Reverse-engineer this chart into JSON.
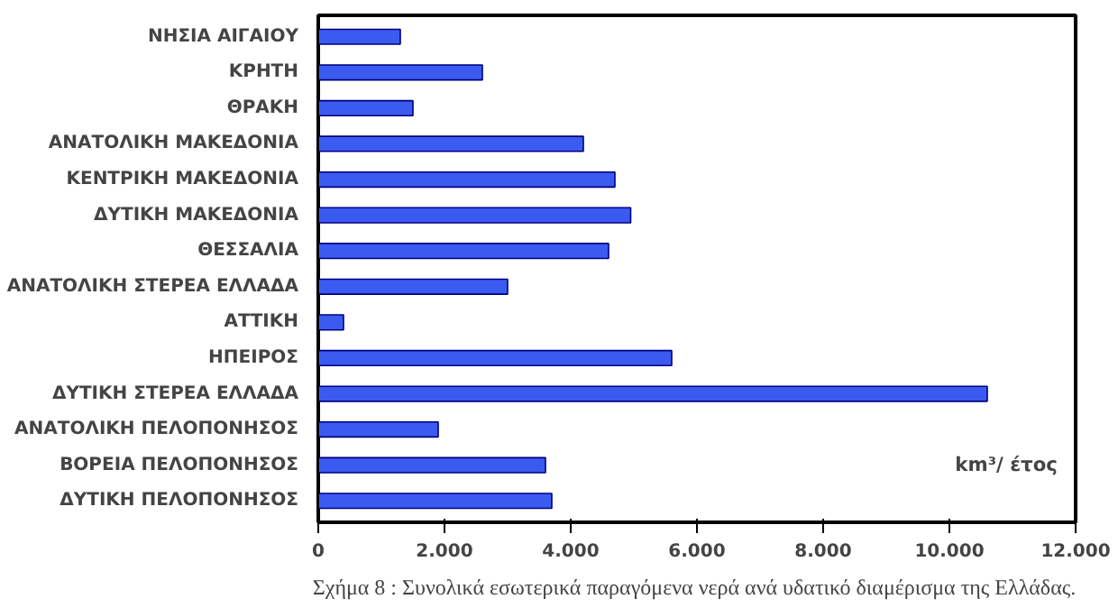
{
  "chart_data": {
    "type": "bar",
    "orientation": "horizontal",
    "categories": [
      "ΝΗΣΙΑ ΑΙΓΑΙΟΥ",
      "ΚΡΗΤΗ",
      "ΘΡΑΚΗ",
      "ΑΝΑΤΟΛΙΚΗ ΜΑΚΕΔΟΝΙΑ",
      "ΚΕΝΤΡΙΚΗ ΜΑΚΕΔΟΝΙΑ",
      "ΔΥΤΙΚΗ ΜΑΚΕΔΟΝΙΑ",
      "ΘΕΣΣΑΛΙΑ",
      "ΑΝΑΤΟΛΙΚΗ ΣΤΕΡΕΑ ΕΛΛΑΔΑ",
      "ΑΤΤΙΚΗ",
      "ΗΠΕΙΡΟΣ",
      "ΔΥΤΙΚΗ ΣΤΕΡΕΑ ΕΛΛΑΔΑ",
      "ΑΝΑΤΟΛΙΚΗ ΠΕΛΟΠΟΝΗΣΟΣ",
      "ΒΟΡΕΙΑ ΠΕΛΟΠΟΝΗΣΟΣ",
      "ΔΥΤΙΚΗ ΠΕΛΟΠΟΝΗΣΟΣ"
    ],
    "values": [
      1300,
      2600,
      1500,
      4200,
      4700,
      4950,
      4600,
      3000,
      400,
      5600,
      10600,
      1900,
      3600,
      3700
    ],
    "color": "#3b5bf0",
    "xlim": [
      0,
      12000
    ],
    "xticks": [
      0,
      {
        "value": 2000,
        "label": "2.000"
      },
      {
        "value": 4000,
        "label": "4.000"
      },
      {
        "value": 6000,
        "label": "6.000"
      },
      {
        "value": 8000,
        "label": "8.000"
      },
      {
        "value": 10000,
        "label": "10.000"
      },
      {
        "value": 12000,
        "label": "12.000"
      }
    ],
    "grid": false,
    "annotations": [
      "km³/ έτος",
      "Σχήμα 8  : Συνολικά εσωτερικά παραγόμενα νερά ανά υδατικό διαμέρισμα της Ελλάδας."
    ]
  }
}
